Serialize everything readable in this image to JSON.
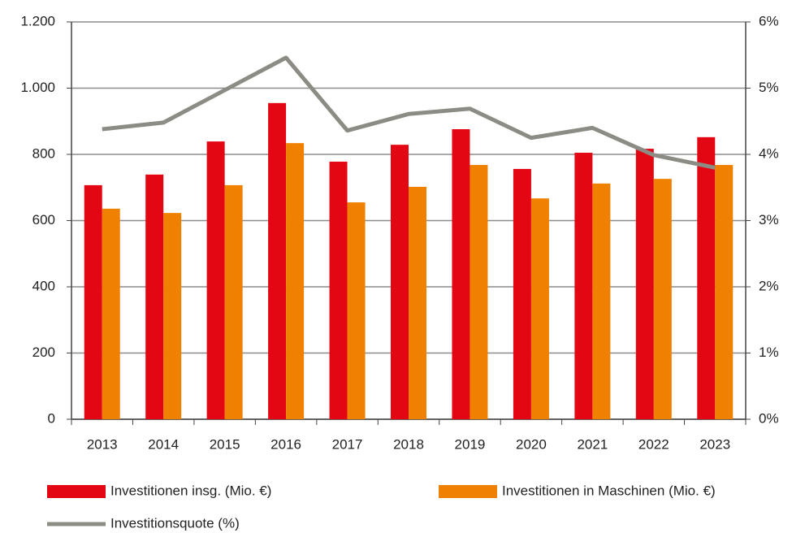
{
  "chart_data": {
    "type": "bar",
    "categories": [
      "2013",
      "2014",
      "2015",
      "2016",
      "2017",
      "2018",
      "2019",
      "2020",
      "2021",
      "2022",
      "2023"
    ],
    "series": [
      {
        "name": "Investitionen insg. (Mio. €)",
        "color": "#e30613",
        "values": [
          707,
          739,
          839,
          955,
          778,
          829,
          876,
          756,
          805,
          817,
          852
        ]
      },
      {
        "name": "Investitionen in Maschinen (Mio. €)",
        "color": "#f08000",
        "values": [
          636,
          623,
          707,
          834,
          655,
          702,
          768,
          667,
          712,
          726,
          768
        ]
      },
      {
        "name": "Investitionsquote (%)",
        "type": "line",
        "axis": "y2",
        "color": "#8c8c84",
        "values": [
          4.38,
          4.48,
          4.97,
          5.46,
          4.36,
          4.61,
          4.69,
          4.25,
          4.4,
          3.99,
          3.8
        ]
      }
    ],
    "ylim": [
      0,
      1200
    ],
    "yticks": [
      0,
      200,
      400,
      600,
      800,
      {
        "value": 1000,
        "label": "1.000"
      },
      {
        "value": 1200,
        "label": "1.200"
      }
    ],
    "y2lim": [
      0,
      6
    ],
    "y2ticks": [
      {
        "value": 0,
        "label": "0%"
      },
      {
        "value": 1,
        "label": "1%"
      },
      {
        "value": 2,
        "label": "2%"
      },
      {
        "value": 3,
        "label": "3%"
      },
      {
        "value": 4,
        "label": "4%"
      },
      {
        "value": 5,
        "label": "5%"
      },
      {
        "value": 6,
        "label": "6%"
      }
    ],
    "grid": true,
    "legend": "bottom"
  }
}
